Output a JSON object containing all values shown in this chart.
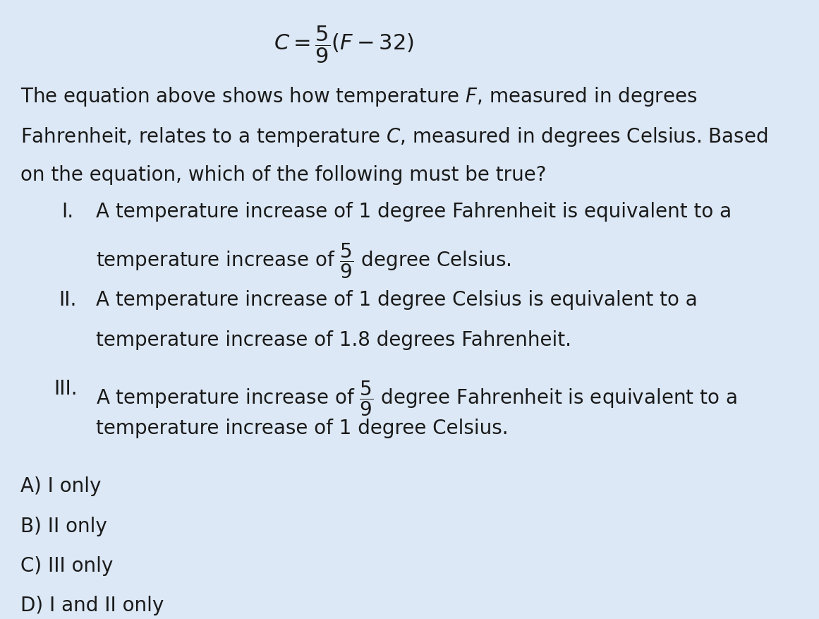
{
  "background_color": "#dce8f5",
  "title_math": "C = \\dfrac{5}{9}(F - 32)",
  "title_fontsize": 22,
  "body_fontsize": 20,
  "answer_fontsize": 20,
  "text_color": "#1a1a1a",
  "paragraph": "The equation above shows how temperature \\textit{F}, measured in degrees\nFahrenheit, relates to a temperature \\textit{C}, measured in degrees Celsius. Based\non the equation, which of the following must be true?",
  "items": [
    {
      "label": "I.",
      "line1": "A temperature increase of 1 degree Fahrenheit is equivalent to a",
      "line2_pre": "temperature increase of ",
      "line2_frac": "\\frac{5}{9}",
      "line2_post": " degree Celsius."
    },
    {
      "label": "II.",
      "line1": "A temperature increase of 1 degree Celsius is equivalent to a",
      "line2": "temperature increase of 1.8 degrees Fahrenheit."
    },
    {
      "label": "III.",
      "line1_pre": "A temperature increase of ",
      "line1_frac": "\\frac{5}{9}",
      "line1_post": " degree Fahrenheit is equivalent to a",
      "line2": "temperature increase of 1 degree Celsius."
    }
  ],
  "answers": [
    "A) I only",
    "B) II only",
    "C) III only",
    "D) I and II only"
  ]
}
